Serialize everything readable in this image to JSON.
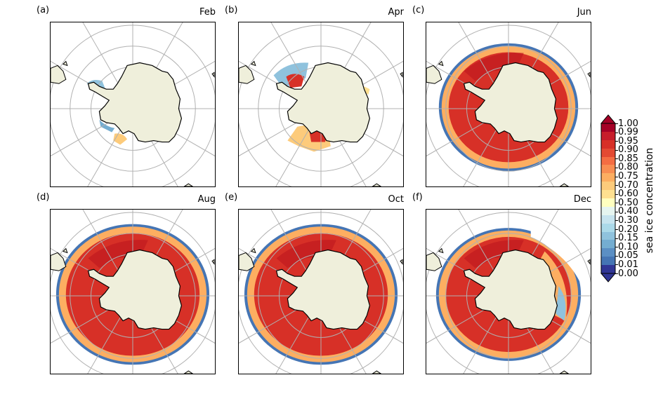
{
  "panels": [
    {
      "label": "(a)",
      "month": "Feb",
      "extent": "low"
    },
    {
      "label": "(b)",
      "month": "Apr",
      "extent": "partial"
    },
    {
      "label": "(c)",
      "month": "Jun",
      "extent": "mid"
    },
    {
      "label": "(d)",
      "month": "Aug",
      "extent": "high"
    },
    {
      "label": "(e)",
      "month": "Oct",
      "extent": "high"
    },
    {
      "label": "(f)",
      "month": "Dec",
      "extent": "retreat"
    }
  ],
  "colorbar": {
    "label": "sea ice concentration",
    "ticks": [
      "1.00",
      "0.99",
      "0.95",
      "0.90",
      "0.85",
      "0.80",
      "0.75",
      "0.70",
      "0.60",
      "0.50",
      "0.40",
      "0.30",
      "0.20",
      "0.15",
      "0.10",
      "0.05",
      "0.01",
      "0.00"
    ],
    "colors": [
      "#a50026",
      "#c71d2b",
      "#d73027",
      "#e34a33",
      "#f46d43",
      "#f98e52",
      "#fdae61",
      "#fdcb7b",
      "#fee090",
      "#ffffbf",
      "#e6f5f0",
      "#c7e4ef",
      "#abd9e9",
      "#8fc2dd",
      "#74add1",
      "#5b8fc4",
      "#4575b4",
      "#313695"
    ],
    "arrow_top_color": "#a50026",
    "arrow_bottom_color": "#313695"
  },
  "colors": {
    "land": "#efefdb",
    "ice_core": "#d73027",
    "ice_dark": "#c01a20",
    "ice_edge": "#fdae61",
    "ice_fringe": "#4575b4",
    "grid": "#b0b0b0"
  }
}
